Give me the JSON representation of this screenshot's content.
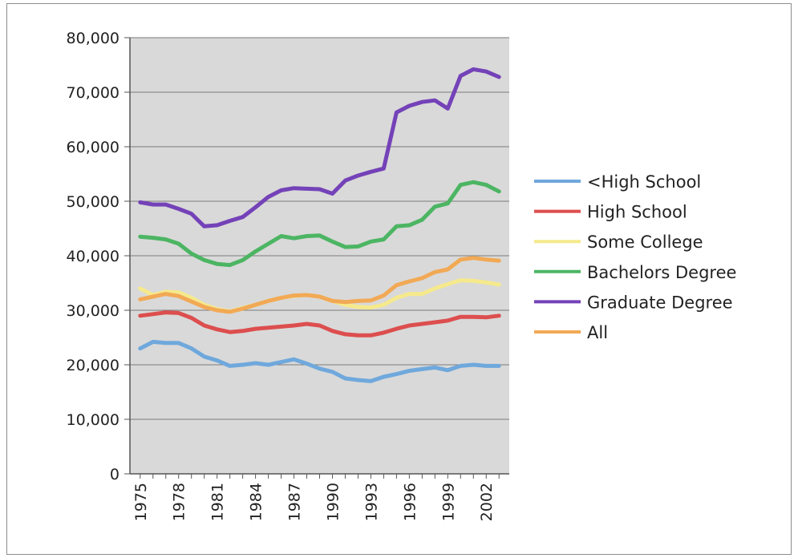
{
  "chart_data": {
    "type": "line",
    "title": "",
    "xlabel": "",
    "ylabel": "",
    "ylim": [
      0,
      80000
    ],
    "yticks": [
      0,
      10000,
      20000,
      30000,
      40000,
      50000,
      60000,
      70000,
      80000
    ],
    "ytick_labels": [
      "0",
      "10,000",
      "20,000",
      "30,000",
      "40,000",
      "50,000",
      "60,000",
      "70,000",
      "80,000"
    ],
    "x": [
      1975,
      1976,
      1977,
      1978,
      1979,
      1980,
      1981,
      1982,
      1983,
      1984,
      1985,
      1986,
      1987,
      1988,
      1989,
      1990,
      1991,
      1992,
      1993,
      1994,
      1995,
      1996,
      1997,
      1998,
      1999,
      2000,
      2001,
      2002,
      2003
    ],
    "xtick_labels": [
      "1975",
      "1978",
      "1981",
      "1984",
      "1987",
      "1990",
      "1993",
      "1996",
      "1999",
      "2002"
    ],
    "grid": true,
    "plot_background": "#d9d9d9",
    "legend_position": "right",
    "series": [
      {
        "name": "<High School",
        "color": "#6fa8dc",
        "values": [
          23000,
          24200,
          24000,
          24000,
          23000,
          21500,
          20800,
          19800,
          20000,
          20300,
          20000,
          20500,
          21000,
          20200,
          19300,
          18700,
          17500,
          17200,
          17000,
          17800,
          18300,
          18900,
          19200,
          19500,
          19000,
          19800,
          20000,
          19800,
          19800
        ]
      },
      {
        "name": "High School",
        "color": "#dd4e4e",
        "values": [
          29000,
          29300,
          29600,
          29500,
          28600,
          27200,
          26500,
          26000,
          26200,
          26600,
          26800,
          27000,
          27200,
          27500,
          27200,
          26200,
          25600,
          25400,
          25400,
          25900,
          26600,
          27200,
          27500,
          27800,
          28100,
          28800,
          28800,
          28700,
          29000
        ]
      },
      {
        "name": "Some College",
        "color": "#f5e98c",
        "values": [
          34000,
          32800,
          33400,
          33300,
          32300,
          31000,
          30200,
          29800,
          30400,
          31000,
          31700,
          32300,
          32600,
          32800,
          32500,
          31700,
          31000,
          30600,
          30500,
          31000,
          32300,
          33000,
          33000,
          34000,
          34800,
          35500,
          35400,
          35100,
          34700
        ]
      },
      {
        "name": "Bachelors Degree",
        "color": "#4cb563",
        "values": [
          43500,
          43300,
          43000,
          42200,
          40400,
          39200,
          38500,
          38300,
          39200,
          40800,
          42200,
          43600,
          43200,
          43600,
          43700,
          42600,
          41600,
          41700,
          42600,
          43000,
          45400,
          45600,
          46600,
          49000,
          49600,
          53000,
          53500,
          53000,
          51800
        ]
      },
      {
        "name": "Graduate Degree",
        "color": "#7442b8",
        "values": [
          49800,
          49400,
          49400,
          48600,
          47700,
          45400,
          45600,
          46400,
          47100,
          48900,
          50800,
          52000,
          52400,
          52300,
          52200,
          51400,
          53800,
          54700,
          55400,
          56000,
          66300,
          67500,
          68200,
          68500,
          67000,
          73000,
          74200,
          73800,
          72800
        ]
      },
      {
        "name": "All",
        "color": "#f2a955",
        "values": [
          32000,
          32500,
          33000,
          32600,
          31600,
          30600,
          30000,
          29700,
          30300,
          31000,
          31700,
          32300,
          32700,
          32800,
          32500,
          31700,
          31500,
          31700,
          31800,
          32700,
          34600,
          35300,
          35900,
          37000,
          37500,
          39300,
          39600,
          39300,
          39100
        ]
      }
    ]
  }
}
